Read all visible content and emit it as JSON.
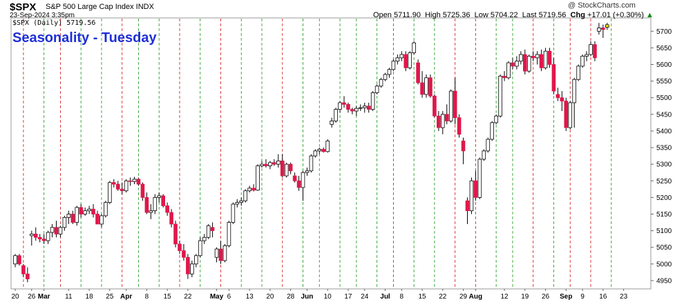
{
  "header": {
    "symbol": "$SPX",
    "description": "S&P 500 Large Cap Index INDX",
    "date_time": "23-Sep-2024 3:35pm",
    "legend_text": "$SPX (Daily) 5719.56",
    "open_label": "Open",
    "open_value": "5711.90",
    "high_label": "High",
    "high_value": "5725.36",
    "low_label": "Low",
    "low_value": "5704.22",
    "last_label": "Last",
    "last_value": "5719.56",
    "chg_label": "Chg",
    "chg_value": "+17.01 (+0.30%)",
    "brand": "@ StockCharts.com"
  },
  "overlay_title": "Seasonality - Tuesday",
  "colors": {
    "up_candle_fill": "#ffffff",
    "down_candle_fill": "#e0174a",
    "candle_stroke": "#000000",
    "green_line": "#2ca02c",
    "red_line": "#d62728",
    "last_highlight": "#ffee00",
    "up_arrow": "#26a626"
  },
  "chart_data": {
    "type": "candlestick",
    "title": "",
    "ylabel": "",
    "ylim": [
      4925,
      5740
    ],
    "y_ticks": [
      4950,
      5000,
      5050,
      5100,
      5150,
      5200,
      5250,
      5300,
      5350,
      5400,
      5450,
      5500,
      5550,
      5600,
      5650,
      5700
    ],
    "x_tick_labels": [
      {
        "label": "20",
        "day": 0,
        "bold": false
      },
      {
        "label": "26",
        "day": 4,
        "bold": false
      },
      {
        "label": "Mar",
        "day": 7,
        "bold": true
      },
      {
        "label": "11",
        "day": 13,
        "bold": false
      },
      {
        "label": "18",
        "day": 18,
        "bold": false
      },
      {
        "label": "25",
        "day": 23,
        "bold": false
      },
      {
        "label": "Apr",
        "day": 27,
        "bold": true
      },
      {
        "label": "8",
        "day": 32,
        "bold": false
      },
      {
        "label": "15",
        "day": 37,
        "bold": false
      },
      {
        "label": "22",
        "day": 42,
        "bold": false
      },
      {
        "label": "May",
        "day": 49,
        "bold": true
      },
      {
        "label": "6",
        "day": 52,
        "bold": false
      },
      {
        "label": "13",
        "day": 57,
        "bold": false
      },
      {
        "label": "20",
        "day": 62,
        "bold": false
      },
      {
        "label": "28",
        "day": 67,
        "bold": false
      },
      {
        "label": "Jun",
        "day": 71,
        "bold": true
      },
      {
        "label": "10",
        "day": 76,
        "bold": false
      },
      {
        "label": "17",
        "day": 81,
        "bold": false
      },
      {
        "label": "24",
        "day": 85,
        "bold": false
      },
      {
        "label": "Jul",
        "day": 90,
        "bold": true
      },
      {
        "label": "8",
        "day": 94,
        "bold": false
      },
      {
        "label": "15",
        "day": 99,
        "bold": false
      },
      {
        "label": "22",
        "day": 104,
        "bold": false
      },
      {
        "label": "29",
        "day": 109,
        "bold": false
      },
      {
        "label": "Aug",
        "day": 112,
        "bold": true
      },
      {
        "label": "12",
        "day": 119,
        "bold": false
      },
      {
        "label": "19",
        "day": 124,
        "bold": false
      },
      {
        "label": "26",
        "day": 129,
        "bold": false
      },
      {
        "label": "Sep",
        "day": 134,
        "bold": true
      },
      {
        "label": "9",
        "day": 138,
        "bold": false
      },
      {
        "label": "16",
        "day": 143,
        "bold": false
      },
      {
        "label": "23",
        "day": 148,
        "bold": false
      }
    ],
    "seasonal_lines": [
      {
        "day": 2,
        "color": "red"
      },
      {
        "day": 7,
        "color": "green"
      },
      {
        "day": 11,
        "color": "red"
      },
      {
        "day": 16,
        "color": "green"
      },
      {
        "day": 21,
        "color": "green"
      },
      {
        "day": 26,
        "color": "red"
      },
      {
        "day": 30,
        "color": "green"
      },
      {
        "day": 35,
        "color": "green"
      },
      {
        "day": 40,
        "color": "red"
      },
      {
        "day": 45,
        "color": "green"
      },
      {
        "day": 50,
        "color": "red"
      },
      {
        "day": 55,
        "color": "green"
      },
      {
        "day": 60,
        "color": "green"
      },
      {
        "day": 65,
        "color": "red"
      },
      {
        "day": 70,
        "color": "green"
      },
      {
        "day": 74,
        "color": "green"
      },
      {
        "day": 79,
        "color": "green"
      },
      {
        "day": 83,
        "color": "green"
      },
      {
        "day": 88,
        "color": "green"
      },
      {
        "day": 92,
        "color": "red"
      },
      {
        "day": 97,
        "color": "green"
      },
      {
        "day": 102,
        "color": "green"
      },
      {
        "day": 107,
        "color": "red"
      },
      {
        "day": 112,
        "color": "red"
      },
      {
        "day": 117,
        "color": "green"
      },
      {
        "day": 121,
        "color": "green"
      },
      {
        "day": 126,
        "color": "red"
      },
      {
        "day": 131,
        "color": "green"
      },
      {
        "day": 135,
        "color": "red"
      },
      {
        "day": 140,
        "color": "red"
      },
      {
        "day": 145,
        "color": "green"
      }
    ],
    "candles": [
      {
        "o": 5000,
        "h": 5030,
        "l": 4990,
        "c": 5025
      },
      {
        "o": 5025,
        "h": 5030,
        "l": 4995,
        "c": 5000
      },
      {
        "o": 4995,
        "h": 5000,
        "l": 4960,
        "c": 4970
      },
      {
        "o": 4970,
        "h": 4990,
        "l": 4945,
        "c": 4955
      },
      {
        "o": 5085,
        "h": 5100,
        "l": 5055,
        "c": 5090
      },
      {
        "o": 5090,
        "h": 5110,
        "l": 5070,
        "c": 5080
      },
      {
        "o": 5080,
        "h": 5090,
        "l": 5065,
        "c": 5075
      },
      {
        "o": 5075,
        "h": 5090,
        "l": 5060,
        "c": 5070
      },
      {
        "o": 5070,
        "h": 5100,
        "l": 5060,
        "c": 5095
      },
      {
        "o": 5095,
        "h": 5120,
        "l": 5080,
        "c": 5110
      },
      {
        "o": 5110,
        "h": 5130,
        "l": 5080,
        "c": 5090
      },
      {
        "o": 5090,
        "h": 5115,
        "l": 5080,
        "c": 5110
      },
      {
        "o": 5110,
        "h": 5145,
        "l": 5100,
        "c": 5140
      },
      {
        "o": 5140,
        "h": 5160,
        "l": 5120,
        "c": 5150
      },
      {
        "o": 5150,
        "h": 5160,
        "l": 5120,
        "c": 5125
      },
      {
        "o": 5125,
        "h": 5175,
        "l": 5115,
        "c": 5170
      },
      {
        "o": 5170,
        "h": 5180,
        "l": 5140,
        "c": 5150
      },
      {
        "o": 5150,
        "h": 5170,
        "l": 5145,
        "c": 5160
      },
      {
        "o": 5160,
        "h": 5175,
        "l": 5150,
        "c": 5165
      },
      {
        "o": 5165,
        "h": 5180,
        "l": 5140,
        "c": 5150
      },
      {
        "o": 5150,
        "h": 5160,
        "l": 5120,
        "c": 5120
      },
      {
        "o": 5120,
        "h": 5150,
        "l": 5110,
        "c": 5145
      },
      {
        "o": 5145,
        "h": 5190,
        "l": 5140,
        "c": 5185
      },
      {
        "o": 5185,
        "h": 5250,
        "l": 5180,
        "c": 5245
      },
      {
        "o": 5245,
        "h": 5255,
        "l": 5230,
        "c": 5240
      },
      {
        "o": 5240,
        "h": 5250,
        "l": 5220,
        "c": 5225
      },
      {
        "o": 5225,
        "h": 5245,
        "l": 5210,
        "c": 5220
      },
      {
        "o": 5220,
        "h": 5255,
        "l": 5215,
        "c": 5250
      },
      {
        "o": 5250,
        "h": 5260,
        "l": 5235,
        "c": 5248
      },
      {
        "o": 5248,
        "h": 5262,
        "l": 5240,
        "c": 5255
      },
      {
        "o": 5255,
        "h": 5260,
        "l": 5235,
        "c": 5240
      },
      {
        "o": 5240,
        "h": 5245,
        "l": 5190,
        "c": 5200
      },
      {
        "o": 5200,
        "h": 5215,
        "l": 5150,
        "c": 5155
      },
      {
        "o": 5155,
        "h": 5180,
        "l": 5135,
        "c": 5160
      },
      {
        "o": 5160,
        "h": 5210,
        "l": 5150,
        "c": 5200
      },
      {
        "o": 5200,
        "h": 5215,
        "l": 5185,
        "c": 5205
      },
      {
        "o": 5205,
        "h": 5210,
        "l": 5170,
        "c": 5175
      },
      {
        "o": 5175,
        "h": 5185,
        "l": 5145,
        "c": 5155
      },
      {
        "o": 5155,
        "h": 5165,
        "l": 5110,
        "c": 5120
      },
      {
        "o": 5120,
        "h": 5130,
        "l": 5050,
        "c": 5060
      },
      {
        "o": 5060,
        "h": 5070,
        "l": 5030,
        "c": 5040
      },
      {
        "o": 5040,
        "h": 5060,
        "l": 5010,
        "c": 5020
      },
      {
        "o": 5020,
        "h": 5030,
        "l": 4955,
        "c": 4970
      },
      {
        "o": 4970,
        "h": 5010,
        "l": 4960,
        "c": 5000
      },
      {
        "o": 5000,
        "h": 5030,
        "l": 4990,
        "c": 5025
      },
      {
        "o": 5025,
        "h": 5080,
        "l": 5020,
        "c": 5070
      },
      {
        "o": 5070,
        "h": 5090,
        "l": 5060,
        "c": 5080
      },
      {
        "o": 5080,
        "h": 5120,
        "l": 5075,
        "c": 5115
      },
      {
        "o": 5110,
        "h": 5125,
        "l": 5080,
        "c": 5100
      },
      {
        "o": 5020,
        "h": 5050,
        "l": 5005,
        "c": 5045
      },
      {
        "o": 5045,
        "h": 5070,
        "l": 5000,
        "c": 5010
      },
      {
        "o": 5010,
        "h": 5060,
        "l": 5005,
        "c": 5055
      },
      {
        "o": 5055,
        "h": 5130,
        "l": 5050,
        "c": 5125
      },
      {
        "o": 5125,
        "h": 5185,
        "l": 5120,
        "c": 5180
      },
      {
        "o": 5180,
        "h": 5195,
        "l": 5170,
        "c": 5185
      },
      {
        "o": 5185,
        "h": 5200,
        "l": 5175,
        "c": 5190
      },
      {
        "o": 5190,
        "h": 5225,
        "l": 5185,
        "c": 5220
      },
      {
        "o": 5220,
        "h": 5235,
        "l": 5215,
        "c": 5228
      },
      {
        "o": 5228,
        "h": 5240,
        "l": 5218,
        "c": 5222
      },
      {
        "o": 5222,
        "h": 5300,
        "l": 5220,
        "c": 5295
      },
      {
        "o": 5295,
        "h": 5310,
        "l": 5290,
        "c": 5300
      },
      {
        "o": 5300,
        "h": 5315,
        "l": 5290,
        "c": 5295
      },
      {
        "o": 5295,
        "h": 5310,
        "l": 5285,
        "c": 5305
      },
      {
        "o": 5305,
        "h": 5315,
        "l": 5295,
        "c": 5300
      },
      {
        "o": 5300,
        "h": 5330,
        "l": 5290,
        "c": 5310
      },
      {
        "o": 5310,
        "h": 5330,
        "l": 5260,
        "c": 5265
      },
      {
        "o": 5265,
        "h": 5305,
        "l": 5260,
        "c": 5300
      },
      {
        "o": 5300,
        "h": 5305,
        "l": 5270,
        "c": 5280
      },
      {
        "o": 5265,
        "h": 5275,
        "l": 5245,
        "c": 5250
      },
      {
        "o": 5250,
        "h": 5265,
        "l": 5220,
        "c": 5230
      },
      {
        "o": 5230,
        "h": 5280,
        "l": 5190,
        "c": 5275
      },
      {
        "o": 5275,
        "h": 5290,
        "l": 5265,
        "c": 5280
      },
      {
        "o": 5280,
        "h": 5330,
        "l": 5275,
        "c": 5325
      },
      {
        "o": 5325,
        "h": 5345,
        "l": 5320,
        "c": 5340
      },
      {
        "o": 5340,
        "h": 5350,
        "l": 5330,
        "c": 5345
      },
      {
        "o": 5345,
        "h": 5350,
        "l": 5335,
        "c": 5338
      },
      {
        "o": 5338,
        "h": 5375,
        "l": 5335,
        "c": 5370
      },
      {
        "o": 5420,
        "h": 5440,
        "l": 5410,
        "c": 5430
      },
      {
        "o": 5430,
        "h": 5470,
        "l": 5425,
        "c": 5465
      },
      {
        "o": 5465,
        "h": 5490,
        "l": 5455,
        "c": 5485
      },
      {
        "o": 5485,
        "h": 5505,
        "l": 5470,
        "c": 5480
      },
      {
        "o": 5480,
        "h": 5485,
        "l": 5455,
        "c": 5465
      },
      {
        "o": 5465,
        "h": 5470,
        "l": 5450,
        "c": 5460
      },
      {
        "o": 5460,
        "h": 5475,
        "l": 5445,
        "c": 5468
      },
      {
        "o": 5468,
        "h": 5480,
        "l": 5460,
        "c": 5470
      },
      {
        "o": 5470,
        "h": 5485,
        "l": 5455,
        "c": 5475
      },
      {
        "o": 5475,
        "h": 5485,
        "l": 5455,
        "c": 5465
      },
      {
        "o": 5465,
        "h": 5520,
        "l": 5460,
        "c": 5515
      },
      {
        "o": 5515,
        "h": 5540,
        "l": 5510,
        "c": 5535
      },
      {
        "o": 5535,
        "h": 5560,
        "l": 5530,
        "c": 5555
      },
      {
        "o": 5555,
        "h": 5575,
        "l": 5550,
        "c": 5570
      },
      {
        "o": 5570,
        "h": 5590,
        "l": 5560,
        "c": 5585
      },
      {
        "o": 5585,
        "h": 5615,
        "l": 5580,
        "c": 5610
      },
      {
        "o": 5610,
        "h": 5630,
        "l": 5600,
        "c": 5620
      },
      {
        "o": 5620,
        "h": 5640,
        "l": 5610,
        "c": 5630
      },
      {
        "o": 5630,
        "h": 5640,
        "l": 5580,
        "c": 5590
      },
      {
        "o": 5590,
        "h": 5640,
        "l": 5585,
        "c": 5635
      },
      {
        "o": 5635,
        "h": 5670,
        "l": 5630,
        "c": 5665
      },
      {
        "o": 5605,
        "h": 5615,
        "l": 5540,
        "c": 5545
      },
      {
        "o": 5545,
        "h": 5580,
        "l": 5500,
        "c": 5510
      },
      {
        "o": 5510,
        "h": 5570,
        "l": 5500,
        "c": 5560
      },
      {
        "o": 5560,
        "h": 5570,
        "l": 5500,
        "c": 5505
      },
      {
        "o": 5505,
        "h": 5510,
        "l": 5440,
        "c": 5445
      },
      {
        "o": 5445,
        "h": 5460,
        "l": 5400,
        "c": 5410
      },
      {
        "o": 5410,
        "h": 5460,
        "l": 5390,
        "c": 5450
      },
      {
        "o": 5450,
        "h": 5480,
        "l": 5420,
        "c": 5430
      },
      {
        "o": 5430,
        "h": 5525,
        "l": 5425,
        "c": 5520
      },
      {
        "o": 5520,
        "h": 5560,
        "l": 5420,
        "c": 5440
      },
      {
        "o": 5440,
        "h": 5450,
        "l": 5380,
        "c": 5390
      },
      {
        "o": 5370,
        "h": 5380,
        "l": 5300,
        "c": 5340
      },
      {
        "o": 5190,
        "h": 5200,
        "l": 5120,
        "c": 5160
      },
      {
        "o": 5160,
        "h": 5260,
        "l": 5150,
        "c": 5250
      },
      {
        "o": 5250,
        "h": 5280,
        "l": 5190,
        "c": 5200
      },
      {
        "o": 5200,
        "h": 5320,
        "l": 5195,
        "c": 5315
      },
      {
        "o": 5315,
        "h": 5345,
        "l": 5310,
        "c": 5340
      },
      {
        "o": 5340,
        "h": 5380,
        "l": 5335,
        "c": 5375
      },
      {
        "o": 5375,
        "h": 5430,
        "l": 5370,
        "c": 5425
      },
      {
        "o": 5425,
        "h": 5450,
        "l": 5420,
        "c": 5445
      },
      {
        "o": 5445,
        "h": 5570,
        "l": 5440,
        "c": 5565
      },
      {
        "o": 5565,
        "h": 5580,
        "l": 5550,
        "c": 5560
      },
      {
        "o": 5560,
        "h": 5610,
        "l": 5555,
        "c": 5605
      },
      {
        "o": 5605,
        "h": 5620,
        "l": 5585,
        "c": 5595
      },
      {
        "o": 5595,
        "h": 5625,
        "l": 5585,
        "c": 5610
      },
      {
        "o": 5610,
        "h": 5640,
        "l": 5600,
        "c": 5630
      },
      {
        "o": 5630,
        "h": 5645,
        "l": 5570,
        "c": 5580
      },
      {
        "o": 5580,
        "h": 5630,
        "l": 5575,
        "c": 5625
      },
      {
        "o": 5625,
        "h": 5640,
        "l": 5610,
        "c": 5620
      },
      {
        "o": 5620,
        "h": 5640,
        "l": 5600,
        "c": 5630
      },
      {
        "o": 5630,
        "h": 5645,
        "l": 5580,
        "c": 5590
      },
      {
        "o": 5590,
        "h": 5650,
        "l": 5585,
        "c": 5640
      },
      {
        "o": 5640,
        "h": 5650,
        "l": 5590,
        "c": 5600
      },
      {
        "o": 5600,
        "h": 5620,
        "l": 5510,
        "c": 5520
      },
      {
        "o": 5510,
        "h": 5530,
        "l": 5490,
        "c": 5500
      },
      {
        "o": 5500,
        "h": 5520,
        "l": 5460,
        "c": 5490
      },
      {
        "o": 5490,
        "h": 5500,
        "l": 5400,
        "c": 5410
      },
      {
        "o": 5410,
        "h": 5490,
        "l": 5405,
        "c": 5485
      },
      {
        "o": 5485,
        "h": 5560,
        "l": 5410,
        "c": 5555
      },
      {
        "o": 5555,
        "h": 5600,
        "l": 5550,
        "c": 5595
      },
      {
        "o": 5595,
        "h": 5630,
        "l": 5590,
        "c": 5625
      },
      {
        "o": 5625,
        "h": 5640,
        "l": 5610,
        "c": 5630
      },
      {
        "o": 5630,
        "h": 5670,
        "l": 5625,
        "c": 5660
      },
      {
        "o": 5660,
        "h": 5670,
        "l": 5610,
        "c": 5620
      },
      {
        "o": 5700,
        "h": 5725,
        "l": 5690,
        "c": 5710
      },
      {
        "o": 5710,
        "h": 5720,
        "l": 5680,
        "c": 5705
      },
      {
        "o": 5711.9,
        "h": 5725.36,
        "l": 5704.22,
        "c": 5719.56
      }
    ]
  }
}
